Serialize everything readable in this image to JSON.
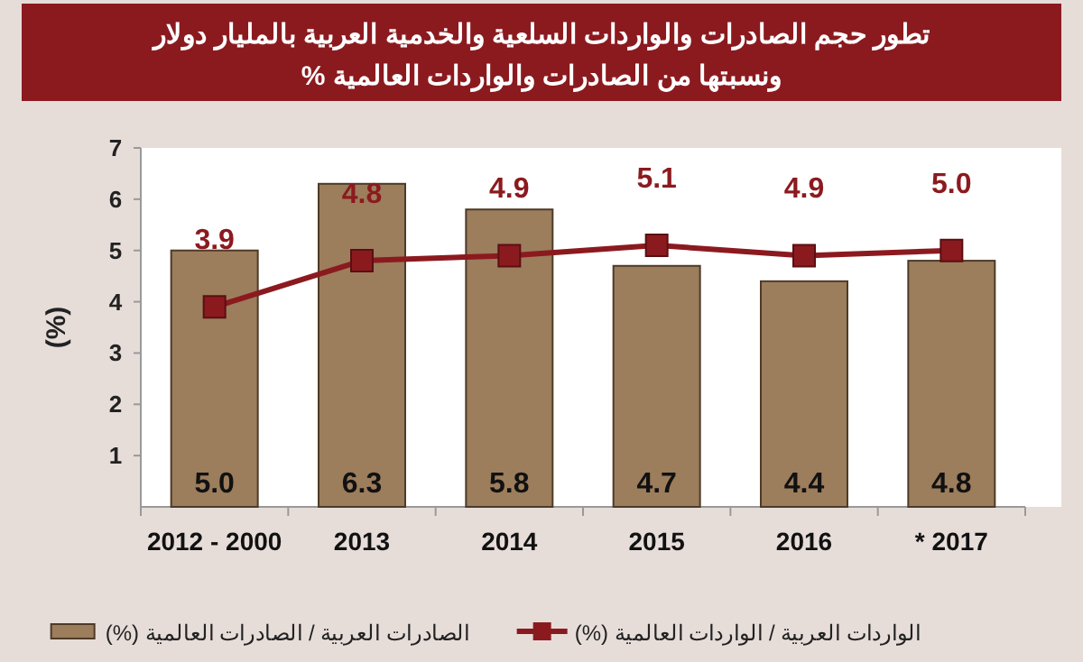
{
  "chart_data": {
    "type": "bar",
    "title": "تطور حجم الصادرات والواردات السلعية والخدمية العربية بالمليار دولار",
    "subtitle": "ونسبتها من الصادرات والواردات  العالمية %",
    "ylabel": "(%)",
    "categories": [
      "2012 - 2000",
      "2013",
      "2014",
      "2015",
      "2016",
      "* 2017"
    ],
    "series": [
      {
        "name": "الصادرات العربية / الصادرات العالمية (%)",
        "color": "#9c7d5c",
        "values": [
          5.0,
          6.3,
          5.8,
          4.7,
          4.4,
          4.8
        ],
        "value_labels": [
          "5.0",
          "6.3",
          "5.8",
          "4.7",
          "4.4",
          "4.8"
        ]
      },
      {
        "name": "الواردات العربية / الواردات العالمية (%)",
        "type": "line",
        "color": "#8b1a1f",
        "marker": "square",
        "values": [
          3.9,
          4.8,
          4.9,
          5.1,
          4.9,
          5.0
        ],
        "value_labels": [
          "3.9",
          "4.8",
          "4.9",
          "5.1",
          "4.9",
          "5.0"
        ]
      }
    ],
    "ylim": [
      0,
      7
    ],
    "yticks": [
      1,
      2,
      3,
      4,
      5,
      6,
      7
    ],
    "grid": false,
    "legend": "bottom"
  }
}
